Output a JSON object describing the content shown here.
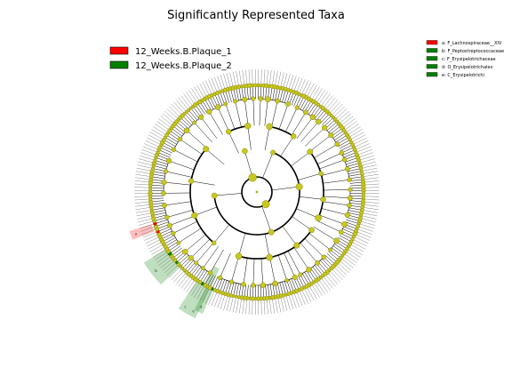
{
  "title": "Significantly Represented Taxa",
  "legend": [
    {
      "label": "12_Weeks.B.Plaque_1",
      "color": "#ff0000"
    },
    {
      "label": "12_Weeks.B.Plaque_2",
      "color": "#008000"
    }
  ],
  "clade_key": [
    {
      "text": "a: F_Lachnospiraceae__XIV",
      "color": "#ff0000"
    },
    {
      "text": "b: F_Peptostreptococcaceae",
      "color": "#008000"
    },
    {
      "text": "c: F_Erysipelotrichaceae",
      "color": "#008000"
    },
    {
      "text": "d: O_Erysipelotrichales",
      "color": "#008000"
    },
    {
      "text": "e: C_Erysipelotrichi",
      "color": "#008000"
    }
  ],
  "clade_labels": [
    "a",
    "b",
    "c",
    "d",
    "e"
  ],
  "colors": {
    "node_fill": "#c8c81e",
    "node_stroke": "#6e6e00",
    "branch": "#000000",
    "group_1": "#ff0000",
    "group_2": "#008000"
  }
}
